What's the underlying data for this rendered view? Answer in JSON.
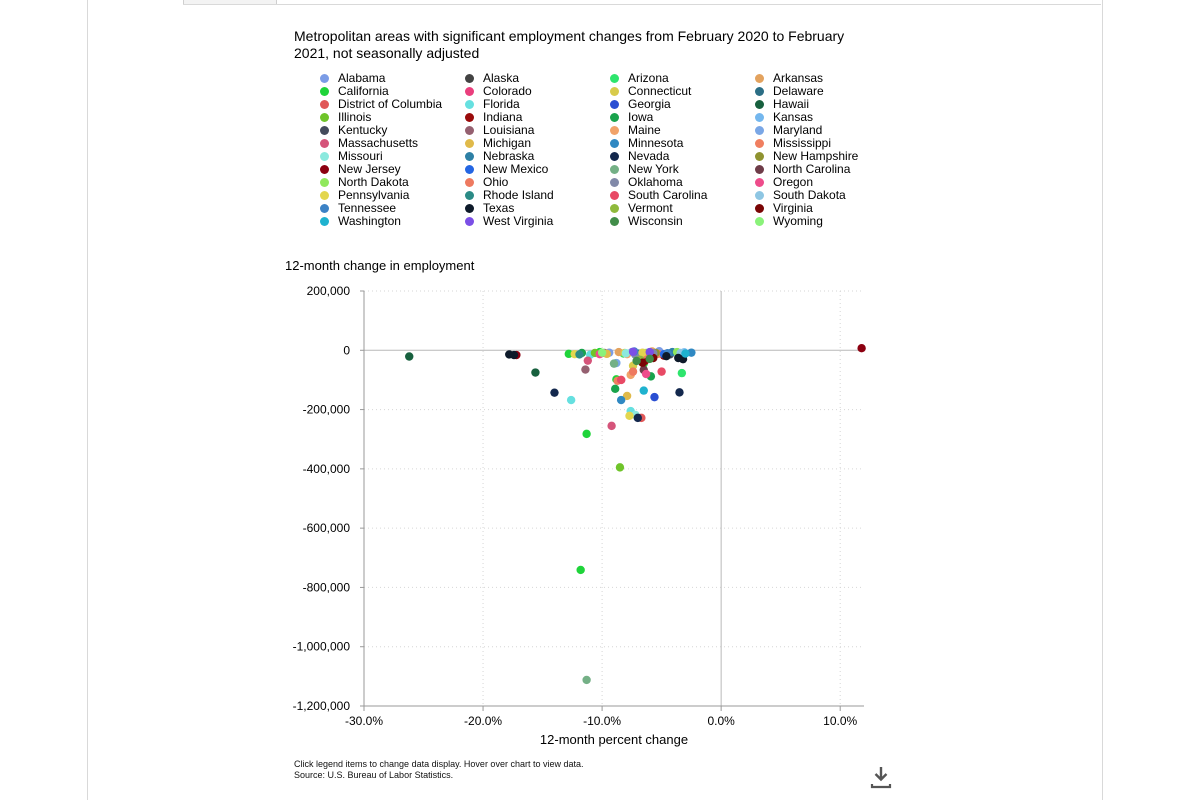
{
  "chart_data": {
    "type": "scatter",
    "title": "Metropolitan areas with significant employment changes from February 2020 to February 2021, not seasonally adjusted",
    "xlabel": "12-month percent change",
    "ylabel": "12-month change in employment",
    "xlim": [
      -30,
      12
    ],
    "ylim": [
      -1200000,
      200000
    ],
    "x_ticks": [
      -30,
      -20,
      -10,
      0,
      10
    ],
    "x_tick_labels": [
      "-30.0%",
      "-20.0%",
      "-10.0%",
      "0.0%",
      "10.0%"
    ],
    "y_ticks": [
      200000,
      0,
      -200000,
      -400000,
      -600000,
      -800000,
      -1000000,
      -1200000
    ],
    "y_tick_labels": [
      "200,000",
      "0",
      "-200,000",
      "-400,000",
      "-600,000",
      "-800,000",
      "-1,000,000",
      "-1,200,000"
    ],
    "grid": true,
    "legend_position": "top",
    "series": [
      {
        "name": "Alabama",
        "color": "#7b9ce6",
        "points": [
          [
            -9.4,
            -8000
          ],
          [
            -7.5,
            -6000
          ],
          [
            -5.2,
            -3000
          ]
        ]
      },
      {
        "name": "Alaska",
        "color": "#434343",
        "points": [
          [
            -7.2,
            -9000
          ]
        ]
      },
      {
        "name": "Arizona",
        "color": "#2ee56d",
        "points": [
          [
            -8.2,
            -11000
          ],
          [
            -3.3,
            -77000
          ]
        ]
      },
      {
        "name": "Arkansas",
        "color": "#e3a25e",
        "points": [
          [
            -8.6,
            -6000
          ],
          [
            -5.8,
            -4000
          ]
        ]
      },
      {
        "name": "California",
        "color": "#1fd43a",
        "points": [
          [
            -11.8,
            -741000
          ],
          [
            -11.3,
            -282000
          ],
          [
            -8.8,
            -98000
          ],
          [
            -6.5,
            -45000
          ],
          [
            -12.8,
            -12000
          ],
          [
            -10.2,
            -6000
          ]
        ]
      },
      {
        "name": "Colorado",
        "color": "#ea3f7d",
        "points": [
          [
            -8.4,
            -100000
          ],
          [
            -6.0,
            -14000
          ]
        ]
      },
      {
        "name": "Connecticut",
        "color": "#d8cb4b",
        "points": [
          [
            -7.4,
            -52000
          ],
          [
            -8.1,
            -9000
          ]
        ]
      },
      {
        "name": "Delaware",
        "color": "#2b6e85",
        "points": [
          [
            -6.9,
            -11000
          ]
        ]
      },
      {
        "name": "District of Columbia",
        "color": "#e05858",
        "points": [
          [
            -6.7,
            -228000
          ]
        ]
      },
      {
        "name": "Florida",
        "color": "#66e0e0",
        "points": [
          [
            -12.6,
            -168000
          ],
          [
            -7.6,
            -205000
          ],
          [
            -11.0,
            -15000
          ]
        ]
      },
      {
        "name": "Georgia",
        "color": "#2a4fd2",
        "points": [
          [
            -5.6,
            -158000
          ],
          [
            -7.0,
            -28000
          ]
        ]
      },
      {
        "name": "Hawaii",
        "color": "#17603e",
        "points": [
          [
            -26.2,
            -21000
          ],
          [
            -15.6,
            -75000
          ]
        ]
      },
      {
        "name": "Illinois",
        "color": "#6fc42a",
        "points": [
          [
            -8.5,
            -395000
          ],
          [
            -10.6,
            -9000
          ],
          [
            -5.6,
            -11000
          ]
        ]
      },
      {
        "name": "Indiana",
        "color": "#9a0b0b",
        "points": [
          [
            -6.4,
            -36000
          ],
          [
            -4.8,
            -18000
          ]
        ]
      },
      {
        "name": "Iowa",
        "color": "#19a34c",
        "points": [
          [
            -8.9,
            -130000
          ],
          [
            -5.9,
            -88000
          ],
          [
            -11.7,
            -9000
          ]
        ]
      },
      {
        "name": "Kansas",
        "color": "#74b7ee",
        "points": [
          [
            -6.1,
            -8000
          ],
          [
            -3.1,
            -7000
          ]
        ]
      },
      {
        "name": "Kentucky",
        "color": "#444b5c",
        "points": [
          [
            -6.8,
            -21000
          ],
          [
            -4.3,
            -14000
          ]
        ]
      },
      {
        "name": "Louisiana",
        "color": "#956070",
        "points": [
          [
            -11.4,
            -65000
          ],
          [
            -9.8,
            -9000
          ]
        ]
      },
      {
        "name": "Maine",
        "color": "#f1a36a",
        "points": [
          [
            -7.6,
            -83000
          ],
          [
            -7.9,
            -13000
          ]
        ]
      },
      {
        "name": "Maryland",
        "color": "#7aa7e6",
        "points": [
          [
            -8.8,
            -43000
          ],
          [
            -5.4,
            -11000
          ]
        ]
      },
      {
        "name": "Massachusetts",
        "color": "#d5547a",
        "points": [
          [
            -9.2,
            -255000
          ],
          [
            -11.2,
            -35000
          ]
        ]
      },
      {
        "name": "Michigan",
        "color": "#e0ba4a",
        "points": [
          [
            -7.9,
            -154000
          ],
          [
            -9.6,
            -12000
          ]
        ]
      },
      {
        "name": "Minnesota",
        "color": "#2f88c2",
        "points": [
          [
            -8.4,
            -168000
          ],
          [
            -2.5,
            -8000
          ]
        ]
      },
      {
        "name": "Mississippi",
        "color": "#f07f60",
        "points": [
          [
            -8.7,
            -103000
          ],
          [
            -5.3,
            -12000
          ]
        ]
      },
      {
        "name": "Missouri",
        "color": "#8be9de",
        "points": [
          [
            -7.2,
            -218000
          ],
          [
            -8.0,
            -10000
          ]
        ]
      },
      {
        "name": "Nebraska",
        "color": "#2e80a5",
        "points": [
          [
            -4.1,
            -6000
          ]
        ]
      },
      {
        "name": "Nevada",
        "color": "#13284d",
        "points": [
          [
            -14.0,
            -143000
          ],
          [
            -3.5,
            -142000
          ],
          [
            -7.0,
            -228000
          ]
        ]
      },
      {
        "name": "New Hampshire",
        "color": "#8f9330",
        "points": [
          [
            -5.5,
            -9000
          ]
        ]
      },
      {
        "name": "New Jersey",
        "color": "#8c0010",
        "points": [
          [
            11.8,
            7000
          ],
          [
            -17.2,
            -16000
          ]
        ]
      },
      {
        "name": "New Mexico",
        "color": "#2466e3",
        "points": [
          [
            -4.8,
            -13000
          ]
        ]
      },
      {
        "name": "New York",
        "color": "#74b086",
        "points": [
          [
            -11.3,
            -1112000
          ],
          [
            -9.0,
            -45000
          ]
        ]
      },
      {
        "name": "North Carolina",
        "color": "#6e3c48",
        "points": [
          [
            -6.5,
            -66000
          ],
          [
            -5.9,
            -20000
          ]
        ]
      },
      {
        "name": "North Dakota",
        "color": "#90e85c",
        "points": [
          [
            -6.3,
            -9000
          ],
          [
            -3.7,
            -6000
          ]
        ]
      },
      {
        "name": "Ohio",
        "color": "#ee7a60",
        "points": [
          [
            -7.4,
            -72000
          ],
          [
            -6.5,
            -14000
          ]
        ]
      },
      {
        "name": "Oklahoma",
        "color": "#8189a8",
        "points": [
          [
            -7.2,
            -15000
          ],
          [
            -5.7,
            -10000
          ]
        ]
      },
      {
        "name": "Oregon",
        "color": "#ee4c8b",
        "points": [
          [
            -6.3,
            -80000
          ],
          [
            -10.2,
            -13000
          ]
        ]
      },
      {
        "name": "Pennsylvania",
        "color": "#e3d64f",
        "points": [
          [
            -7.7,
            -221000
          ],
          [
            -12.3,
            -13000
          ],
          [
            -6.6,
            -8000
          ]
        ]
      },
      {
        "name": "Rhode Island",
        "color": "#2b8b86",
        "points": [
          [
            -11.9,
            -14000
          ]
        ]
      },
      {
        "name": "South Carolina",
        "color": "#e84a65",
        "points": [
          [
            -8.4,
            -100000
          ],
          [
            -5.0,
            -72000
          ]
        ]
      },
      {
        "name": "South Dakota",
        "color": "#8ec6e3",
        "points": [
          [
            -3.4,
            -9000
          ]
        ]
      },
      {
        "name": "Tennessee",
        "color": "#3c82c5",
        "points": [
          [
            -7.3,
            -4000
          ],
          [
            -4.5,
            -10000
          ]
        ]
      },
      {
        "name": "Texas",
        "color": "#0e1a2a",
        "points": [
          [
            -17.8,
            -14000
          ],
          [
            -17.4,
            -16000
          ],
          [
            -3.6,
            -26000
          ],
          [
            -3.2,
            -30000
          ],
          [
            -4.6,
            -20000
          ]
        ]
      },
      {
        "name": "Vermont",
        "color": "#8fba3c",
        "points": [
          [
            -6.8,
            -32000
          ]
        ]
      },
      {
        "name": "Virginia",
        "color": "#7a0505",
        "points": [
          [
            -5.7,
            -26000
          ],
          [
            -6.6,
            -42000
          ]
        ]
      },
      {
        "name": "Washington",
        "color": "#1fb2cf",
        "points": [
          [
            -6.5,
            -136000
          ],
          [
            -3.0,
            -11000
          ]
        ]
      },
      {
        "name": "West Virginia",
        "color": "#7b4fe6",
        "points": [
          [
            -6.0,
            -6000
          ],
          [
            -7.4,
            -5000
          ]
        ]
      },
      {
        "name": "Wisconsin",
        "color": "#418d49",
        "points": [
          [
            -7.1,
            -36000
          ],
          [
            -6.0,
            -29000
          ]
        ]
      },
      {
        "name": "Wyoming",
        "color": "#8af27a",
        "points": [
          [
            -10.0,
            -8000
          ]
        ]
      }
    ]
  },
  "note": {
    "line1": "Click legend items to change data display. Hover over chart to view data.",
    "line2": "Source: U.S. Bureau of Labor Statistics."
  },
  "download": {
    "icon": "download-icon"
  }
}
